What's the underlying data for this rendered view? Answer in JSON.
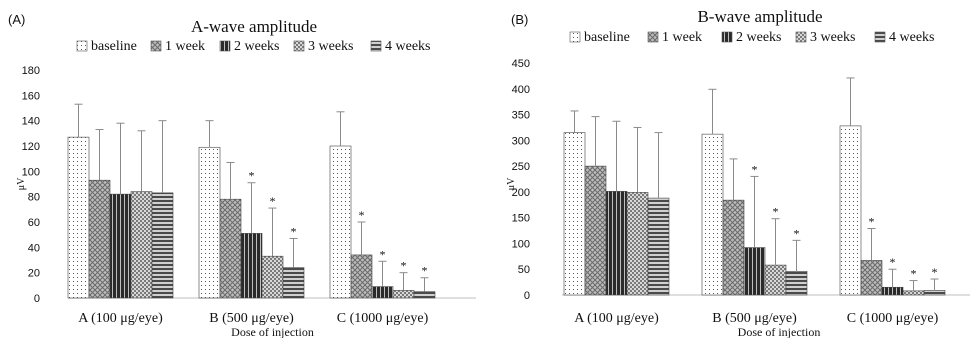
{
  "panels": [
    {
      "label": "(A)"
    },
    {
      "label": "(B)"
    }
  ],
  "chart_data": [
    {
      "type": "bar",
      "title": "A-wave amplitude",
      "xlabel": "Dose of injection",
      "ylabel": "μV",
      "ylim": [
        0,
        180
      ],
      "yticks": [
        0,
        20,
        40,
        60,
        80,
        100,
        120,
        140,
        160,
        180
      ],
      "grid": false,
      "legend_position": "top",
      "categories": [
        "A (100 μg/eye)",
        "B (500 μg/eye)",
        "C (1000 μg/eye)"
      ],
      "series": [
        {
          "name": "baseline",
          "values": [
            127,
            119,
            120
          ],
          "errors": [
            26,
            21,
            27
          ],
          "significant": [
            false,
            false,
            false
          ]
        },
        {
          "name": "1 week",
          "values": [
            93,
            78,
            34
          ],
          "errors": [
            40,
            29,
            26
          ],
          "significant": [
            false,
            false,
            true
          ]
        },
        {
          "name": "2 weeks",
          "values": [
            82,
            51,
            9
          ],
          "errors": [
            56,
            40,
            20
          ],
          "significant": [
            false,
            true,
            true
          ]
        },
        {
          "name": "3 weeks",
          "values": [
            84,
            33,
            6
          ],
          "errors": [
            48,
            38,
            14
          ],
          "significant": [
            false,
            true,
            true
          ]
        },
        {
          "name": "4 weeks",
          "values": [
            83,
            24,
            5
          ],
          "errors": [
            57,
            23,
            11
          ],
          "significant": [
            false,
            true,
            true
          ]
        }
      ],
      "significance_marker": "*"
    },
    {
      "type": "bar",
      "title": "B-wave amplitude",
      "xlabel": "Dose of injection",
      "ylabel": "μV",
      "ylim": [
        0,
        450
      ],
      "yticks": [
        0,
        50,
        100,
        150,
        200,
        250,
        300,
        350,
        400,
        450
      ],
      "grid": false,
      "legend_position": "top",
      "categories": [
        "A (100 μg/eye)",
        "B (500 μg/eye)",
        "C (1000 μg/eye)"
      ],
      "series": [
        {
          "name": "baseline",
          "values": [
            315,
            312,
            328
          ],
          "errors": [
            42,
            87,
            93
          ],
          "significant": [
            false,
            false,
            false
          ]
        },
        {
          "name": "1 week",
          "values": [
            250,
            184,
            67
          ],
          "errors": [
            96,
            80,
            62
          ],
          "significant": [
            false,
            false,
            true
          ]
        },
        {
          "name": "2 weeks",
          "values": [
            201,
            92,
            15
          ],
          "errors": [
            136,
            138,
            35
          ],
          "significant": [
            false,
            true,
            true
          ]
        },
        {
          "name": "3 weeks",
          "values": [
            199,
            58,
            8
          ],
          "errors": [
            126,
            90,
            20
          ],
          "significant": [
            false,
            true,
            true
          ]
        },
        {
          "name": "4 weeks",
          "values": [
            188,
            46,
            9
          ],
          "errors": [
            127,
            60,
            22
          ],
          "significant": [
            false,
            true,
            true
          ]
        }
      ],
      "significance_marker": "*"
    }
  ]
}
